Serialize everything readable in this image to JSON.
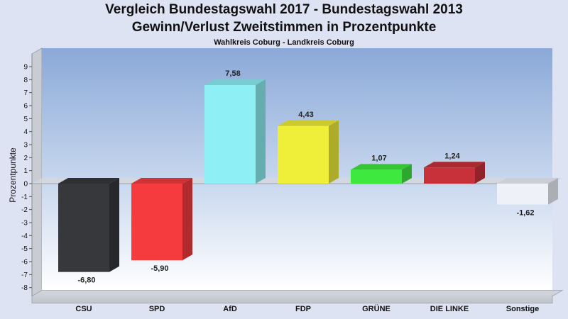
{
  "chart_data": {
    "type": "bar",
    "title": "Vergleich Bundestagswahl 2017 - Bundestagswahl 2013",
    "subtitle": "Gewinn/Verlust Zweitstimmen in Prozentpunkte",
    "caption": "Wahlkreis Coburg - Landkreis Coburg",
    "xlabel": "",
    "ylabel": "Prozentpunkte",
    "ylim": [
      -8,
      9
    ],
    "yticks": [
      9,
      8,
      7,
      6,
      5,
      4,
      3,
      2,
      1,
      0,
      -1,
      -2,
      -3,
      -4,
      -5,
      -6,
      -7,
      -8
    ],
    "grid": false,
    "categories": [
      "CSU",
      "SPD",
      "AfD",
      "FDP",
      "GRÜNE",
      "DIE LINKE",
      "Sonstige"
    ],
    "values": [
      -6.8,
      -5.9,
      7.58,
      4.43,
      1.07,
      1.24,
      -1.62
    ],
    "value_labels": [
      "-6,80",
      "-5,90",
      "7,58",
      "4,43",
      "1,07",
      "1,24",
      "-1,62"
    ],
    "colors": [
      "#36383c",
      "#f63b3e",
      "#8ef0f5",
      "#efef3a",
      "#3ee83e",
      "#c9313a",
      "#eef1f8"
    ]
  }
}
